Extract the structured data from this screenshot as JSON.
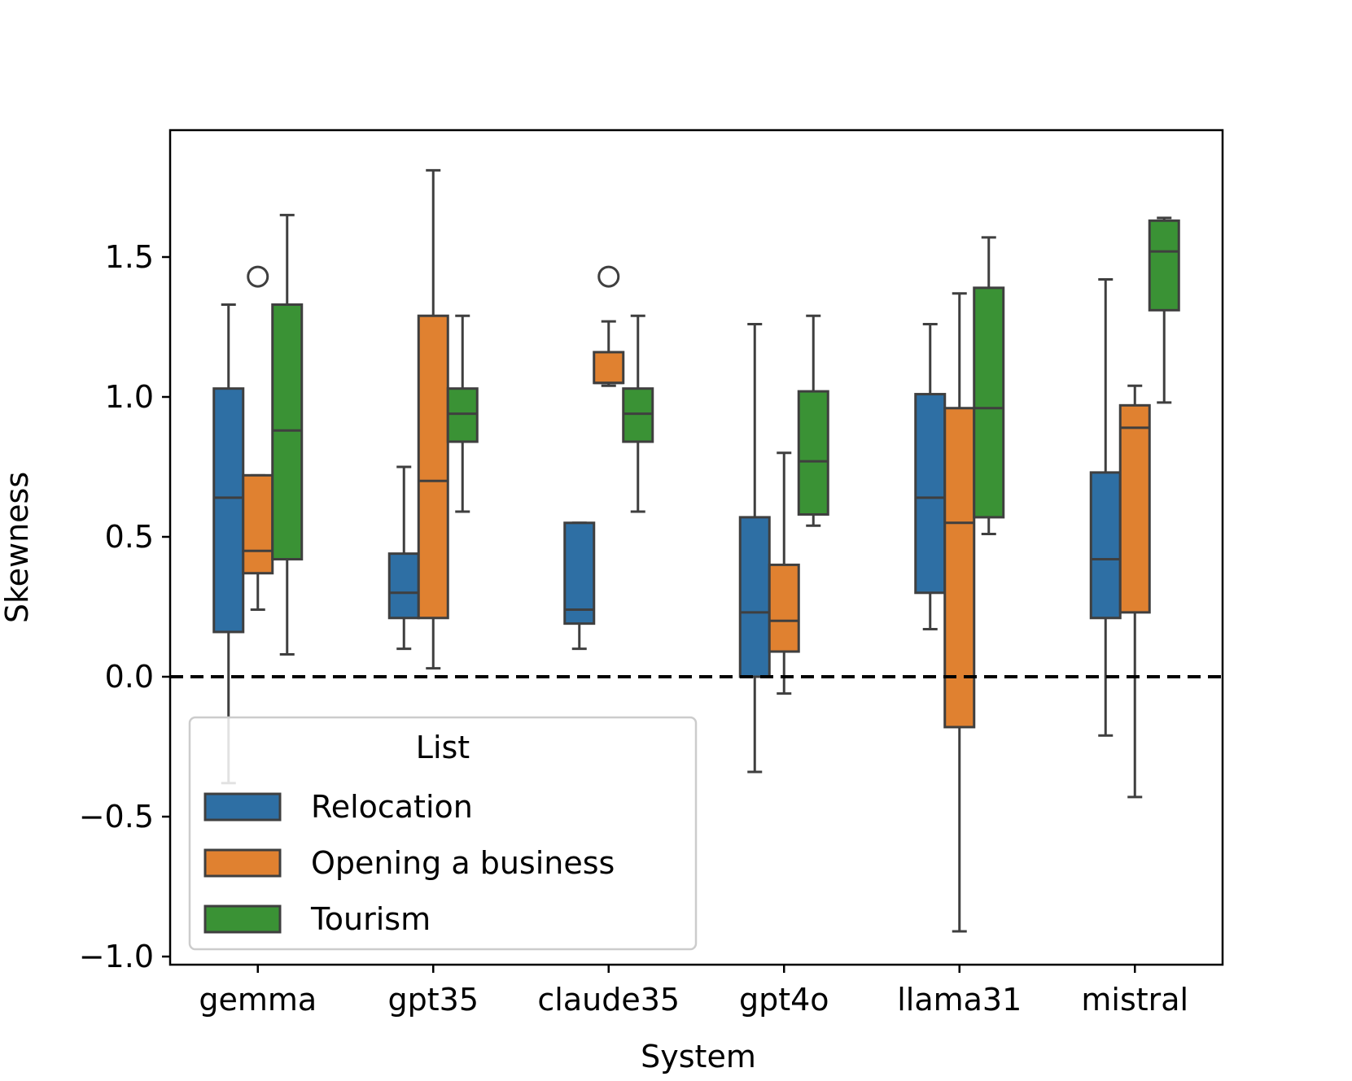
{
  "chart_data": {
    "type": "box",
    "xlabel": "System",
    "ylabel": "Skewness",
    "ylim": [
      -1.05,
      1.95
    ],
    "yticks": [
      -1.0,
      -0.5,
      0.0,
      0.5,
      1.0,
      1.5
    ],
    "ytick_labels": [
      "−1.0",
      "−0.5",
      "0.0",
      "0.5",
      "1.0",
      "1.5"
    ],
    "categories": [
      "gemma",
      "gpt35",
      "claude35",
      "gpt4o",
      "llama31",
      "mistral"
    ],
    "reference_line": {
      "y": 0.0,
      "style": "dashed",
      "color": "#000000"
    },
    "legend": {
      "title": "List",
      "location": "lower-left"
    },
    "series": [
      {
        "name": "Relocation",
        "color": "#2e6fa4",
        "boxes": [
          {
            "whislo": -0.38,
            "q1": 0.16,
            "med": 0.64,
            "q3": 1.03,
            "whishi": 1.33,
            "fliers": []
          },
          {
            "whislo": 0.1,
            "q1": 0.21,
            "med": 0.3,
            "q3": 0.44,
            "whishi": 0.75,
            "fliers": []
          },
          {
            "whislo": 0.1,
            "q1": 0.19,
            "med": 0.24,
            "q3": 0.55,
            "whishi": 0.55,
            "fliers": []
          },
          {
            "whislo": -0.34,
            "q1": 0.0,
            "med": 0.23,
            "q3": 0.57,
            "whishi": 1.26,
            "fliers": []
          },
          {
            "whislo": 0.17,
            "q1": 0.3,
            "med": 0.64,
            "q3": 1.01,
            "whishi": 1.26,
            "fliers": []
          },
          {
            "whislo": -0.21,
            "q1": 0.21,
            "med": 0.42,
            "q3": 0.73,
            "whishi": 1.42,
            "fliers": []
          }
        ]
      },
      {
        "name": "Opening a business",
        "color": "#e08130",
        "boxes": [
          {
            "whislo": 0.24,
            "q1": 0.37,
            "med": 0.45,
            "q3": 0.72,
            "whishi": 0.72,
            "fliers": [
              1.43
            ]
          },
          {
            "whislo": 0.03,
            "q1": 0.21,
            "med": 0.7,
            "q3": 1.29,
            "whishi": 1.81,
            "fliers": []
          },
          {
            "whislo": 1.04,
            "q1": 1.05,
            "med": 1.05,
            "q3": 1.16,
            "whishi": 1.27,
            "fliers": [
              1.43
            ]
          },
          {
            "whislo": -0.06,
            "q1": 0.09,
            "med": 0.2,
            "q3": 0.4,
            "whishi": 0.8,
            "fliers": []
          },
          {
            "whislo": -0.91,
            "q1": -0.18,
            "med": 0.55,
            "q3": 0.96,
            "whishi": 1.37,
            "fliers": []
          },
          {
            "whislo": -0.43,
            "q1": 0.23,
            "med": 0.89,
            "q3": 0.97,
            "whishi": 1.04,
            "fliers": []
          }
        ]
      },
      {
        "name": "Tourism",
        "color": "#3a9235",
        "boxes": [
          {
            "whislo": 0.08,
            "q1": 0.42,
            "med": 0.88,
            "q3": 1.33,
            "whishi": 1.65,
            "fliers": []
          },
          {
            "whislo": 0.59,
            "q1": 0.84,
            "med": 0.94,
            "q3": 1.03,
            "whishi": 1.29,
            "fliers": []
          },
          {
            "whislo": 0.59,
            "q1": 0.84,
            "med": 0.94,
            "q3": 1.03,
            "whishi": 1.29,
            "fliers": []
          },
          {
            "whislo": 0.54,
            "q1": 0.58,
            "med": 0.77,
            "q3": 1.02,
            "whishi": 1.29,
            "fliers": []
          },
          {
            "whislo": 0.51,
            "q1": 0.57,
            "med": 0.96,
            "q3": 1.39,
            "whishi": 1.57,
            "fliers": []
          },
          {
            "whislo": 0.98,
            "q1": 1.31,
            "med": 1.52,
            "q3": 1.63,
            "whishi": 1.64,
            "fliers": []
          }
        ]
      }
    ]
  }
}
